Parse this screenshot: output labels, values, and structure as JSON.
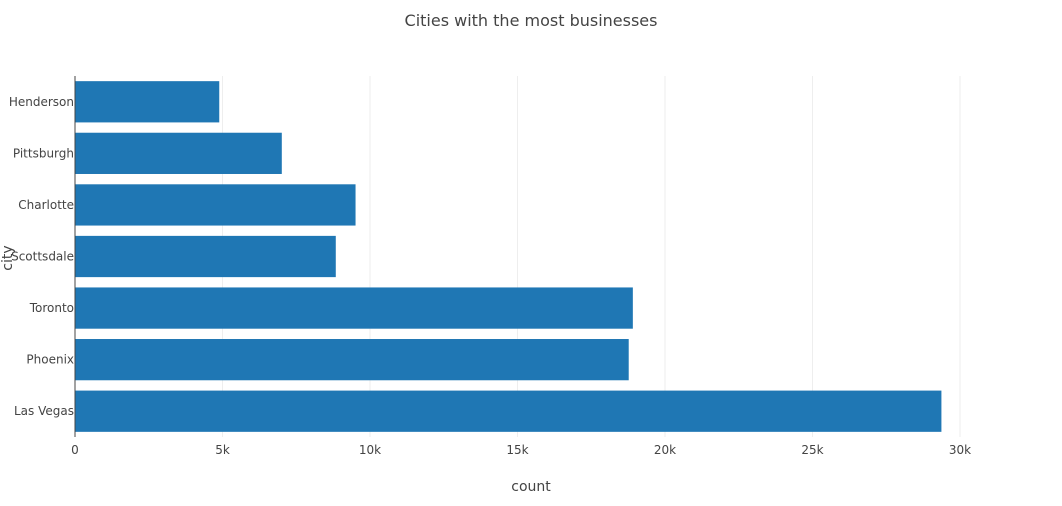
{
  "chart_data": {
    "type": "bar",
    "orientation": "horizontal",
    "title": "Cities with the most businesses",
    "xlabel": "count",
    "ylabel": "city",
    "categories": [
      "Las Vegas",
      "Phoenix",
      "Toronto",
      "Scottsdale",
      "Charlotte",
      "Pittsburgh",
      "Henderson"
    ],
    "values": [
      29370,
      18770,
      18910,
      8840,
      9510,
      7010,
      4890
    ],
    "xlim": [
      0,
      30000
    ],
    "xticks": [
      0,
      5000,
      10000,
      15000,
      20000,
      25000,
      30000
    ],
    "xtick_labels": [
      "0",
      "5k",
      "10k",
      "15k",
      "20k",
      "25k",
      "30k"
    ],
    "bar_color": "#1f77b4",
    "grid": true,
    "legend": false
  }
}
